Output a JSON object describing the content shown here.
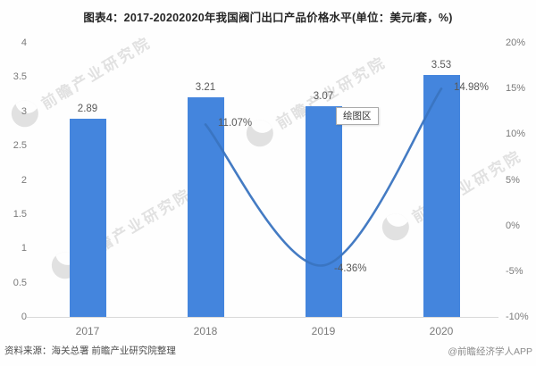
{
  "title": "图表4：2017-20202020年我国阀门出口产品价格水平(单位：美元/套，%)",
  "tooltip": "绘图区",
  "watermark": {
    "text": "前瞻产业研究院"
  },
  "footer": {
    "source": "资料来源：海关总署 前瞻产业研究院整理",
    "credit": "@前瞻经济学人APP"
  },
  "chart_data": {
    "type": "bar+line combo, dual axis",
    "title": "图表4：2017-20202020年我国阀门出口产品价格水平(单位：美元/套，%)",
    "categories": [
      "2017",
      "2018",
      "2019",
      "2020"
    ],
    "series": [
      {
        "type": "bar",
        "unit": "美元/套",
        "axis": "left",
        "values": [
          2.89,
          3.21,
          3.07,
          3.53
        ],
        "labels": [
          "2.89",
          "3.21",
          "3.07",
          "3.53"
        ],
        "color": "#4485dd"
      },
      {
        "type": "line",
        "unit": "%",
        "axis": "right",
        "values": [
          null,
          11.07,
          -4.36,
          14.98
        ],
        "labels": [
          "11.07%",
          "-4.36%",
          "14.98%"
        ],
        "color": "#3a74c0",
        "smooth": true
      }
    ],
    "left_axis": {
      "min": 0,
      "max": 4,
      "ticks": [
        "4",
        "3.5",
        "3",
        "2.5",
        "2",
        "1.5",
        "1",
        "0.5",
        "0"
      ]
    },
    "right_axis": {
      "min": -10,
      "max": 20,
      "ticks": [
        "20%",
        "15%",
        "10%",
        "5%",
        "0%",
        "-5%",
        "-10%"
      ]
    },
    "grid": false,
    "legend": "none",
    "axis_line_color": "#d9d9d9"
  }
}
